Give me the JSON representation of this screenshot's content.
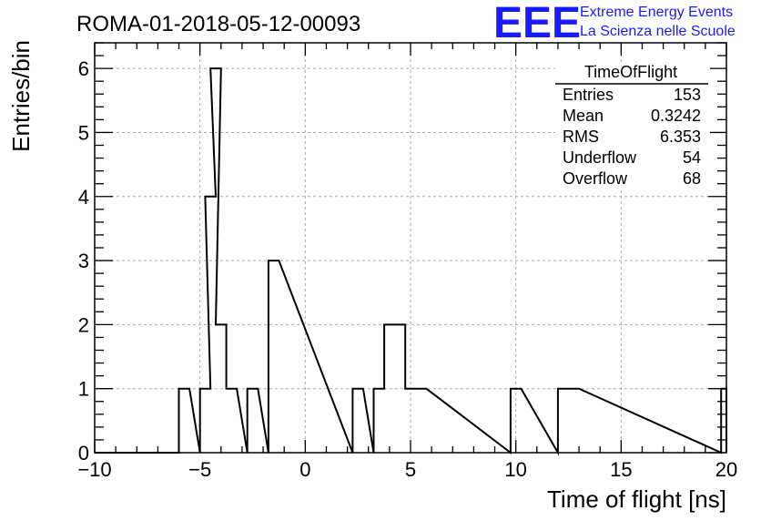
{
  "chart_data": {
    "type": "bar",
    "title": "ROMA-01-2018-05-12-00093",
    "xlabel": "Time of flight [ns]",
    "ylabel": "Entries/bin",
    "xlim": [
      -10,
      20
    ],
    "ylim": [
      0,
      6.4
    ],
    "bin_width": 0.5,
    "x_ticks": [
      "−10",
      "−5",
      "0",
      "5",
      "10",
      "15",
      "20"
    ],
    "y_ticks": [
      "0",
      "1",
      "2",
      "3",
      "4",
      "5",
      "6"
    ],
    "grid": true,
    "bins": [
      {
        "x": -6.0,
        "count": 1
      },
      {
        "x": -5.0,
        "count": 1
      },
      {
        "x": -4.75,
        "count": 4
      },
      {
        "x": -4.5,
        "count": 6
      },
      {
        "x": -4.25,
        "count": 2
      },
      {
        "x": -3.75,
        "count": 1
      },
      {
        "x": -2.75,
        "count": 1
      },
      {
        "x": -1.75,
        "count": 3
      },
      {
        "x": 2.25,
        "count": 1
      },
      {
        "x": 3.25,
        "count": 1
      },
      {
        "x": 3.75,
        "count": 2
      },
      {
        "x": 4.25,
        "count": 2
      },
      {
        "x": 4.75,
        "count": 1
      },
      {
        "x": 5.25,
        "count": 1
      },
      {
        "x": 9.75,
        "count": 1
      },
      {
        "x": 12.0,
        "count": 1
      },
      {
        "x": 12.5,
        "count": 1
      },
      {
        "x": 19.75,
        "count": 1
      }
    ],
    "stats_box": {
      "name": "TimeOfFlight",
      "rows": [
        {
          "label": "Entries",
          "value": "153"
        },
        {
          "label": "Mean",
          "value": "0.3242"
        },
        {
          "label": "RMS",
          "value": "6.353"
        },
        {
          "label": "Underflow",
          "value": "54"
        },
        {
          "label": "Overflow",
          "value": "68"
        }
      ],
      "placement": "top-right"
    }
  },
  "logo": {
    "mark": "EEE",
    "line1": "Extreme Energy Events",
    "line2": "La Scienza nelle Scuole",
    "color": "#1a1aff"
  },
  "colors": {
    "line": "#000000",
    "grid": "#aaaaaa"
  }
}
